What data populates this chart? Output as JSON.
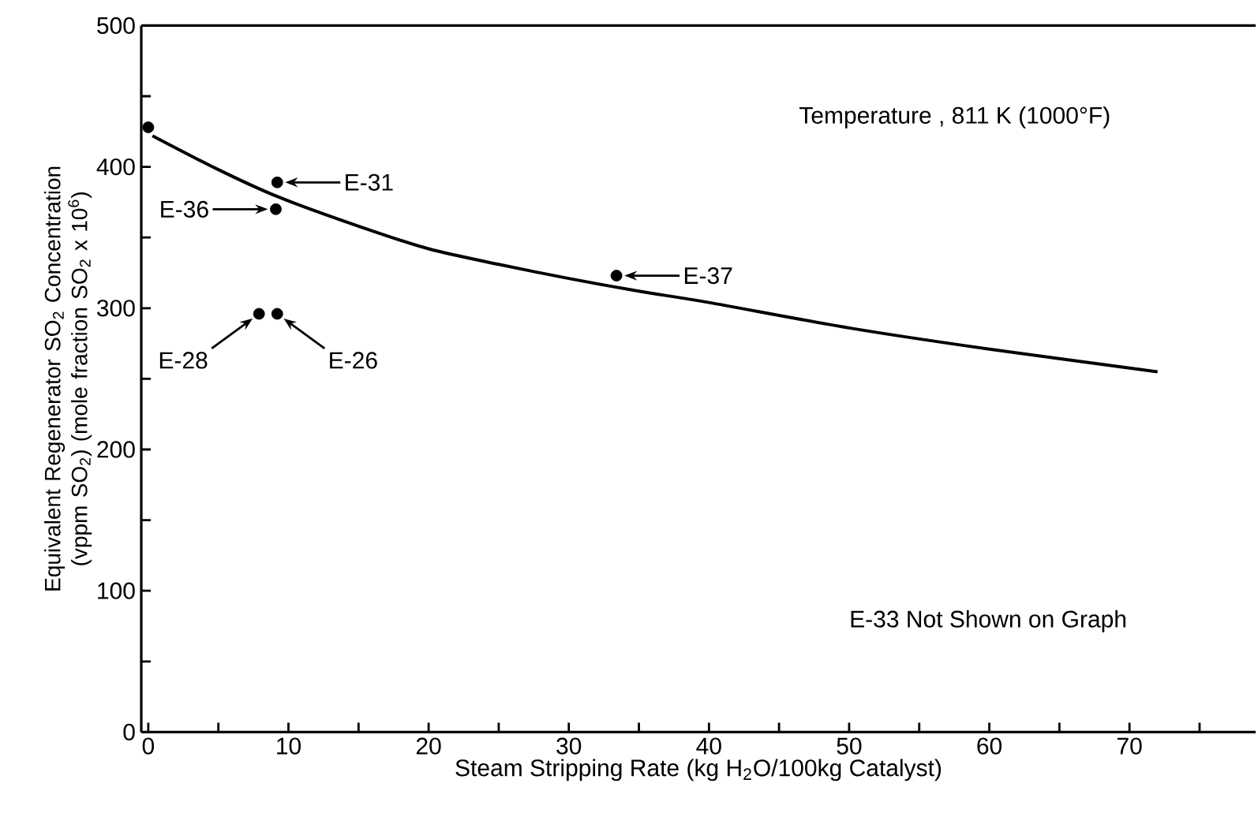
{
  "chart_data": {
    "type": "line",
    "xlabel": "Steam Stripping Rate  (kg H$_{2}$O/100kg Catalyst)",
    "ylabel": "Equivalent Regenerator SO$_{2}$ Concentration (vppm SO$_{2}$) (mole fraction SO$_{2}$ x 10$^{6}$)",
    "xlim": [
      -0.5,
      79
    ],
    "ylim": [
      0,
      500
    ],
    "xticks": [
      0,
      {
        "value": 5,
        "label": null
      },
      10,
      {
        "value": 15,
        "label": null
      },
      20,
      {
        "value": 25,
        "label": null
      },
      30,
      {
        "value": 35,
        "label": null
      },
      40,
      {
        "value": 45,
        "label": null
      },
      50,
      {
        "value": 55,
        "label": null
      },
      60,
      {
        "value": 65,
        "label": null
      },
      70,
      {
        "value": 75,
        "label": null
      }
    ],
    "yticks": [
      0,
      {
        "value": 50,
        "label": null
      },
      100,
      {
        "value": 150,
        "label": null
      },
      200,
      {
        "value": 250,
        "label": null
      },
      300,
      {
        "value": 350,
        "label": null
      },
      400,
      {
        "value": 450,
        "label": null
      },
      500
    ],
    "series": [
      {
        "color": "#000000",
        "marker": "none",
        "x": [
          0.3,
          5,
          9.2,
          15,
          20,
          25,
          30,
          35,
          40,
          50,
          60,
          72
        ],
        "values": [
          422,
          398,
          379,
          358,
          342,
          331,
          321,
          312,
          304,
          286,
          271,
          255
        ]
      },
      {
        "type": "scatter",
        "color": "#000000",
        "marker": "circle",
        "x": [
          0,
          9.2,
          9.1,
          33.4,
          7.9,
          9.2
        ],
        "values": [
          428,
          389,
          370,
          323,
          296,
          296
        ]
      }
    ],
    "annotations": [
      "Temperature , 811 K  (1000°F)",
      "E-33 Not Shown on Graph",
      {
        "text": "E-31",
        "x": 9.2,
        "y": 389
      },
      {
        "text": "E-36",
        "x": 9.1,
        "y": 370
      },
      {
        "text": "E-37",
        "x": 33.4,
        "y": 323
      },
      {
        "text": "E-28",
        "x": 7.9,
        "y": 296
      },
      {
        "text": "E-26",
        "x": 9.2,
        "y": 296
      }
    ]
  }
}
